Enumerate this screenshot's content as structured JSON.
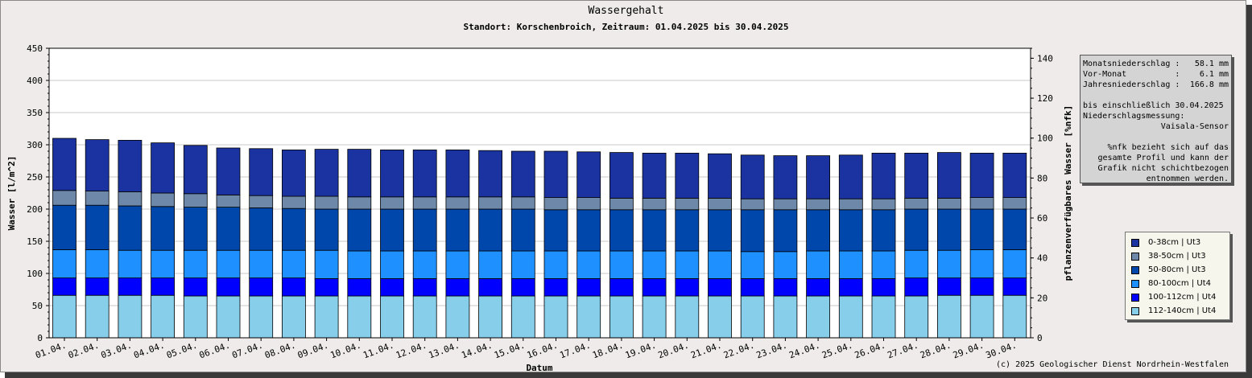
{
  "title": "Wassergehalt",
  "subtitle": "Standort: Korschenbroich, Zeitraum: 01.04.2025 bis 30.04.2025",
  "info": {
    "line1_label": "Monatsniederschlag :",
    "line1_value": "58.1 mm",
    "line2_label": "Vor-Monat          :",
    "line2_value": "6.1 mm",
    "line3_label": "Jahresniederschlag :",
    "line3_value": "166.8 mm",
    "line4": "bis einschließlich 30.04.2025",
    "line5": "Niederschlagsmessung:",
    "line6": "Vaisala-Sensor",
    "line7": "%nfk bezieht sich auf das",
    "line8": "gesamte Profil und kann der",
    "line9": "Grafik nicht schichtbezogen",
    "line10": "entnommen werden."
  },
  "copyright": "(c) 2025 Geologischer Dienst Nordrhein-Westfalen",
  "chart_data": {
    "type": "bar",
    "stacked": true,
    "title": "Wassergehalt",
    "xlabel": "Datum",
    "ylabel": "Wasser [l/m^2]",
    "y2label": "pflanzenverfügbares Wasser [%nfk]",
    "ylim": [
      0,
      450
    ],
    "y2lim": [
      0,
      145
    ],
    "yticks": [
      0,
      50,
      100,
      150,
      200,
      250,
      300,
      350,
      400,
      450
    ],
    "y2ticks": [
      0,
      20,
      40,
      60,
      80,
      100,
      120,
      140
    ],
    "grid": true,
    "legend_position": "right",
    "categories": [
      "01.04.",
      "02.04.",
      "03.04.",
      "04.04.",
      "05.04.",
      "06.04.",
      "07.04.",
      "08.04.",
      "09.04.",
      "10.04.",
      "11.04.",
      "12.04.",
      "13.04.",
      "14.04.",
      "15.04.",
      "16.04.",
      "17.04.",
      "18.04.",
      "19.04.",
      "20.04.",
      "21.04.",
      "22.04.",
      "23.04.",
      "24.04.",
      "25.04.",
      "26.04.",
      "27.04.",
      "28.04.",
      "29.04.",
      "30.04."
    ],
    "series": [
      {
        "name": "112-140cm | Ut4",
        "color": "#87ceeb",
        "values": [
          66,
          66,
          66,
          66,
          65,
          65,
          65,
          65,
          65,
          65,
          65,
          65,
          65,
          65,
          65,
          65,
          65,
          65,
          65,
          65,
          65,
          65,
          65,
          65,
          65,
          65,
          65,
          66,
          66,
          66
        ]
      },
      {
        "name": "100-112cm | Ut4",
        "color": "#0000ff",
        "values": [
          27,
          27,
          27,
          27,
          28,
          28,
          28,
          28,
          27,
          27,
          27,
          27,
          27,
          27,
          27,
          27,
          27,
          27,
          27,
          27,
          27,
          27,
          27,
          27,
          27,
          27,
          28,
          27,
          27,
          27
        ]
      },
      {
        "name": "80-100cm | Ut4",
        "color": "#1e90ff",
        "values": [
          44,
          44,
          43,
          43,
          43,
          43,
          43,
          43,
          44,
          43,
          43,
          43,
          43,
          43,
          43,
          43,
          43,
          43,
          43,
          43,
          43,
          42,
          42,
          43,
          43,
          43,
          43,
          43,
          44,
          44
        ]
      },
      {
        "name": "50-80cm | Ut3",
        "color": "#0047ab",
        "values": [
          69,
          69,
          69,
          68,
          67,
          67,
          66,
          65,
          64,
          65,
          65,
          65,
          65,
          65,
          65,
          64,
          64,
          64,
          64,
          64,
          64,
          65,
          65,
          64,
          64,
          64,
          64,
          64,
          63,
          63
        ]
      },
      {
        "name": "38-50cm | Ut3",
        "color": "#6d88a8",
        "values": [
          23,
          22,
          22,
          21,
          21,
          19,
          19,
          19,
          20,
          19,
          19,
          19,
          19,
          19,
          19,
          19,
          19,
          18,
          18,
          18,
          18,
          17,
          17,
          17,
          17,
          17,
          17,
          17,
          18,
          18
        ]
      },
      {
        "name": "0-38cm | Ut3",
        "color": "#1a33a0",
        "values": [
          81,
          80,
          80,
          78,
          75,
          73,
          73,
          72,
          73,
          74,
          73,
          73,
          73,
          72,
          71,
          72,
          71,
          71,
          70,
          70,
          69,
          68,
          67,
          67,
          68,
          71,
          70,
          71,
          69,
          69
        ]
      }
    ]
  }
}
